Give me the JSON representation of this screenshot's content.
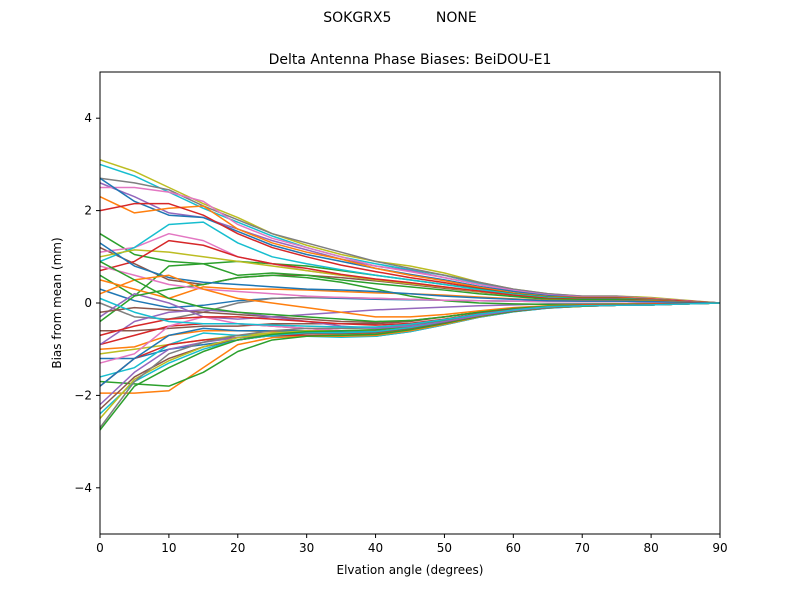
{
  "figure": {
    "suptitle": "SOKGRX5          NONE"
  },
  "chart_data": {
    "type": "line",
    "title": "Delta Antenna Phase Biases: BeiDOU-E1",
    "xlabel": "Elvation angle (degrees)",
    "ylabel": "Bias from mean (mm)",
    "xlim": [
      0,
      90
    ],
    "ylim": [
      -5,
      5
    ],
    "xticks": [
      0,
      10,
      20,
      30,
      40,
      50,
      60,
      70,
      80,
      90
    ],
    "yticks": [
      -4,
      -2,
      0,
      2,
      4
    ],
    "ytick_labels": [
      "−4",
      "−2",
      "0",
      "2",
      "4"
    ],
    "grid": false,
    "legend": "none",
    "x": [
      0,
      5,
      10,
      15,
      20,
      25,
      30,
      35,
      40,
      45,
      50,
      55,
      60,
      65,
      70,
      75,
      80,
      85,
      90
    ],
    "series": [
      {
        "color": "#bcbd22",
        "values": [
          3.1,
          2.85,
          2.5,
          2.15,
          1.85,
          1.5,
          1.25,
          1.05,
          0.9,
          0.8,
          0.65,
          0.45,
          0.3,
          0.2,
          0.15,
          0.15,
          0.12,
          0.06,
          0
        ]
      },
      {
        "color": "#17becf",
        "values": [
          3.0,
          2.75,
          2.4,
          2.05,
          1.75,
          1.45,
          1.2,
          1.0,
          0.85,
          0.72,
          0.6,
          0.42,
          0.28,
          0.18,
          0.14,
          0.14,
          0.1,
          0.05,
          0
        ]
      },
      {
        "color": "#7f7f7f",
        "values": [
          2.7,
          2.6,
          2.45,
          2.1,
          1.8,
          1.5,
          1.3,
          1.1,
          0.9,
          0.75,
          0.6,
          0.45,
          0.3,
          0.2,
          0.15,
          0.15,
          0.1,
          0.05,
          0
        ]
      },
      {
        "color": "#9467bd",
        "values": [
          2.6,
          2.3,
          1.95,
          1.85,
          1.6,
          1.35,
          1.15,
          0.95,
          0.8,
          0.7,
          0.55,
          0.4,
          0.28,
          0.18,
          0.14,
          0.13,
          0.1,
          0.05,
          0
        ]
      },
      {
        "color": "#e377c2",
        "values": [
          2.5,
          2.5,
          2.4,
          2.2,
          1.7,
          1.4,
          1.2,
          1.0,
          0.8,
          0.68,
          0.55,
          0.4,
          0.27,
          0.17,
          0.13,
          0.13,
          0.1,
          0.05,
          0
        ]
      },
      {
        "color": "#1f77b4",
        "values": [
          2.7,
          2.2,
          1.9,
          1.85,
          1.55,
          1.25,
          1.05,
          0.9,
          0.75,
          0.62,
          0.5,
          0.36,
          0.25,
          0.16,
          0.12,
          0.12,
          0.09,
          0.04,
          0
        ]
      },
      {
        "color": "#ff7f0e",
        "values": [
          2.3,
          1.95,
          2.05,
          2.1,
          1.6,
          1.3,
          1.1,
          0.95,
          0.75,
          0.6,
          0.48,
          0.34,
          0.22,
          0.14,
          0.12,
          0.12,
          0.09,
          0.04,
          0
        ]
      },
      {
        "color": "#d62728",
        "values": [
          2.0,
          2.15,
          2.15,
          1.9,
          1.5,
          1.2,
          1.0,
          0.82,
          0.68,
          0.55,
          0.44,
          0.32,
          0.2,
          0.13,
          0.11,
          0.11,
          0.08,
          0.04,
          0
        ]
      },
      {
        "color": "#2ca02c",
        "values": [
          1.5,
          1.05,
          0.9,
          0.85,
          0.9,
          0.85,
          0.8,
          0.7,
          0.6,
          0.5,
          0.4,
          0.3,
          0.2,
          0.13,
          0.1,
          0.1,
          0.07,
          0.03,
          0
        ]
      },
      {
        "color": "#8c564b",
        "values": [
          1.2,
          0.85,
          0.5,
          0.4,
          0.55,
          0.6,
          0.6,
          0.55,
          0.48,
          0.4,
          0.32,
          0.24,
          0.16,
          0.1,
          0.08,
          0.08,
          0.06,
          0.03,
          0
        ]
      },
      {
        "color": "#e377c2",
        "values": [
          1.1,
          1.2,
          1.5,
          1.35,
          1.0,
          0.85,
          0.7,
          0.6,
          0.5,
          0.42,
          0.34,
          0.25,
          0.17,
          0.1,
          0.08,
          0.08,
          0.06,
          0.03,
          0
        ]
      },
      {
        "color": "#17becf",
        "values": [
          0.9,
          1.2,
          1.7,
          1.75,
          1.3,
          1.0,
          0.85,
          0.72,
          0.6,
          0.5,
          0.4,
          0.29,
          0.19,
          0.12,
          0.09,
          0.09,
          0.07,
          0.03,
          0
        ]
      },
      {
        "color": "#bcbd22",
        "values": [
          1.0,
          1.15,
          1.1,
          1.0,
          0.9,
          0.8,
          0.7,
          0.6,
          0.5,
          0.42,
          0.34,
          0.25,
          0.17,
          0.1,
          0.08,
          0.08,
          0.06,
          0.03,
          0
        ]
      },
      {
        "color": "#d62728",
        "values": [
          0.7,
          0.9,
          1.35,
          1.25,
          1.0,
          0.85,
          0.75,
          0.62,
          0.52,
          0.44,
          0.35,
          0.26,
          0.17,
          0.1,
          0.08,
          0.08,
          0.06,
          0.03,
          0
        ]
      },
      {
        "color": "#2ca02c",
        "values": [
          0.6,
          0.15,
          0.8,
          0.85,
          0.6,
          0.65,
          0.6,
          0.5,
          0.42,
          0.35,
          0.28,
          0.2,
          0.14,
          0.08,
          0.07,
          0.07,
          0.05,
          0.02,
          0
        ]
      },
      {
        "color": "#ff7f0e",
        "values": [
          0.5,
          0.3,
          0.1,
          0.35,
          0.3,
          0.3,
          0.28,
          0.25,
          0.22,
          0.2,
          0.17,
          0.13,
          0.09,
          0.06,
          0.05,
          0.05,
          0.04,
          0.02,
          0
        ]
      },
      {
        "color": "#1f77b4",
        "values": [
          0.3,
          0.05,
          -0.1,
          -0.05,
          0.05,
          0.1,
          0.12,
          0.1,
          0.08,
          0.07,
          0.06,
          0.05,
          0.04,
          0.03,
          0.03,
          0.03,
          0.02,
          0.01,
          0
        ]
      },
      {
        "color": "#7f7f7f",
        "values": [
          0.0,
          -0.3,
          -0.35,
          -0.2,
          0.0,
          0.1,
          0.12,
          0.12,
          0.1,
          0.08,
          0.06,
          0.05,
          0.04,
          0.03,
          0.03,
          0.03,
          0.02,
          0.01,
          0
        ]
      },
      {
        "color": "#9467bd",
        "values": [
          -0.3,
          0.2,
          0.0,
          -0.3,
          -0.35,
          -0.3,
          -0.25,
          -0.2,
          -0.15,
          -0.12,
          -0.09,
          -0.06,
          -0.04,
          -0.02,
          -0.02,
          -0.02,
          -0.01,
          0,
          0
        ]
      },
      {
        "color": "#2ca02c",
        "values": [
          -0.4,
          0.15,
          0.3,
          0.4,
          0.55,
          0.6,
          0.55,
          0.45,
          0.3,
          0.15,
          0.05,
          0.0,
          -0.02,
          -0.03,
          -0.03,
          -0.02,
          -0.02,
          -0.01,
          0
        ]
      },
      {
        "color": "#8c564b",
        "values": [
          -0.6,
          -0.6,
          -0.55,
          -0.5,
          -0.5,
          -0.45,
          -0.45,
          -0.45,
          -0.45,
          -0.4,
          -0.3,
          -0.2,
          -0.12,
          -0.07,
          -0.05,
          -0.04,
          -0.03,
          -0.01,
          0
        ]
      },
      {
        "color": "#d62728",
        "values": [
          -0.9,
          -0.7,
          -0.5,
          -0.45,
          -0.45,
          -0.5,
          -0.55,
          -0.6,
          -0.6,
          -0.5,
          -0.38,
          -0.25,
          -0.15,
          -0.09,
          -0.06,
          -0.05,
          -0.04,
          -0.02,
          0
        ]
      },
      {
        "color": "#ff7f0e",
        "values": [
          -1.0,
          -0.95,
          -0.7,
          -0.6,
          -0.6,
          -0.62,
          -0.65,
          -0.68,
          -0.65,
          -0.55,
          -0.42,
          -0.28,
          -0.17,
          -0.1,
          -0.07,
          -0.05,
          -0.04,
          -0.02,
          0
        ]
      },
      {
        "color": "#bcbd22",
        "values": [
          -1.1,
          -1.0,
          -0.9,
          -0.8,
          -0.7,
          -0.65,
          -0.65,
          -0.68,
          -0.7,
          -0.6,
          -0.45,
          -0.3,
          -0.18,
          -0.1,
          -0.07,
          -0.05,
          -0.04,
          -0.02,
          0
        ]
      },
      {
        "color": "#1f77b4",
        "values": [
          -1.2,
          -1.2,
          -1.0,
          -0.9,
          -0.8,
          -0.7,
          -0.7,
          -0.72,
          -0.72,
          -0.62,
          -0.47,
          -0.31,
          -0.19,
          -0.11,
          -0.07,
          -0.05,
          -0.04,
          -0.02,
          0
        ]
      },
      {
        "color": "#e377c2",
        "values": [
          -1.3,
          -1.1,
          -0.5,
          -0.3,
          -0.45,
          -0.5,
          -0.55,
          -0.6,
          -0.62,
          -0.55,
          -0.42,
          -0.28,
          -0.17,
          -0.1,
          -0.07,
          -0.05,
          -0.04,
          -0.02,
          0
        ]
      },
      {
        "color": "#17becf",
        "values": [
          -1.6,
          -1.4,
          -0.9,
          -0.65,
          -0.7,
          -0.72,
          -0.72,
          -0.74,
          -0.72,
          -0.62,
          -0.47,
          -0.31,
          -0.19,
          -0.11,
          -0.07,
          -0.05,
          -0.04,
          -0.02,
          0
        ]
      },
      {
        "color": "#d62728",
        "values": [
          -1.8,
          -1.2,
          -0.9,
          -0.8,
          -0.75,
          -0.7,
          -0.7,
          -0.7,
          -0.68,
          -0.58,
          -0.44,
          -0.29,
          -0.18,
          -0.1,
          -0.07,
          -0.05,
          -0.04,
          -0.02,
          0
        ]
      },
      {
        "color": "#ff7f0e",
        "values": [
          -1.95,
          -1.95,
          -1.9,
          -1.4,
          -0.9,
          -0.75,
          -0.72,
          -0.72,
          -0.7,
          -0.6,
          -0.46,
          -0.3,
          -0.18,
          -0.1,
          -0.07,
          -0.05,
          -0.04,
          -0.02,
          0
        ]
      },
      {
        "color": "#2ca02c",
        "values": [
          -1.7,
          -1.75,
          -1.8,
          -1.5,
          -1.05,
          -0.8,
          -0.72,
          -0.7,
          -0.68,
          -0.58,
          -0.44,
          -0.29,
          -0.18,
          -0.1,
          -0.07,
          -0.05,
          -0.04,
          -0.02,
          0
        ]
      },
      {
        "color": "#1f77b4",
        "values": [
          -1.8,
          -1.2,
          -0.7,
          -0.55,
          -0.6,
          -0.6,
          -0.6,
          -0.62,
          -0.62,
          -0.53,
          -0.4,
          -0.26,
          -0.16,
          -0.09,
          -0.06,
          -0.05,
          -0.04,
          -0.02,
          0
        ]
      },
      {
        "color": "#9467bd",
        "values": [
          -2.2,
          -1.5,
          -1.0,
          -0.85,
          -0.75,
          -0.68,
          -0.65,
          -0.65,
          -0.63,
          -0.54,
          -0.41,
          -0.27,
          -0.16,
          -0.09,
          -0.06,
          -0.05,
          -0.04,
          -0.02,
          0
        ]
      },
      {
        "color": "#8c564b",
        "values": [
          -2.3,
          -1.6,
          -1.2,
          -0.95,
          -0.8,
          -0.7,
          -0.66,
          -0.66,
          -0.64,
          -0.55,
          -0.42,
          -0.27,
          -0.17,
          -0.1,
          -0.06,
          -0.05,
          -0.04,
          -0.02,
          0
        ]
      },
      {
        "color": "#17becf",
        "values": [
          -2.4,
          -1.7,
          -1.3,
          -1.0,
          -0.8,
          -0.7,
          -0.64,
          -0.64,
          -0.62,
          -0.53,
          -0.4,
          -0.26,
          -0.16,
          -0.09,
          -0.06,
          -0.05,
          -0.04,
          -0.02,
          0
        ]
      },
      {
        "color": "#bcbd22",
        "values": [
          -2.5,
          -1.65,
          -1.25,
          -0.95,
          -0.75,
          -0.65,
          -0.6,
          -0.6,
          -0.58,
          -0.5,
          -0.38,
          -0.25,
          -0.15,
          -0.09,
          -0.06,
          -0.05,
          -0.04,
          -0.02,
          0
        ]
      },
      {
        "color": "#7f7f7f",
        "values": [
          -2.7,
          -1.7,
          -1.1,
          -0.85,
          -0.7,
          -0.6,
          -0.55,
          -0.55,
          -0.54,
          -0.47,
          -0.36,
          -0.24,
          -0.14,
          -0.08,
          -0.06,
          -0.05,
          -0.04,
          -0.02,
          0
        ]
      },
      {
        "color": "#2ca02c",
        "values": [
          -2.75,
          -1.8,
          -1.4,
          -1.05,
          -0.8,
          -0.68,
          -0.62,
          -0.6,
          -0.58,
          -0.5,
          -0.38,
          -0.25,
          -0.15,
          -0.09,
          -0.06,
          -0.05,
          -0.04,
          -0.02,
          0
        ]
      },
      {
        "color": "#e377c2",
        "values": [
          0.8,
          0.6,
          0.4,
          0.3,
          0.25,
          0.2,
          0.15,
          0.12,
          0.1,
          0.08,
          0.06,
          0.05,
          0.04,
          0.03,
          0.03,
          0.03,
          0.02,
          0.01,
          0
        ]
      },
      {
        "color": "#1f77b4",
        "values": [
          1.3,
          0.8,
          0.55,
          0.45,
          0.4,
          0.35,
          0.3,
          0.28,
          0.25,
          0.2,
          0.15,
          0.11,
          0.08,
          0.05,
          0.04,
          0.04,
          0.03,
          0.01,
          0
        ]
      },
      {
        "color": "#8c564b",
        "values": [
          -0.2,
          -0.1,
          -0.15,
          -0.2,
          -0.25,
          -0.3,
          -0.35,
          -0.4,
          -0.42,
          -0.38,
          -0.3,
          -0.2,
          -0.12,
          -0.07,
          -0.05,
          -0.04,
          -0.03,
          -0.01,
          0
        ]
      },
      {
        "color": "#ff7f0e",
        "values": [
          0.2,
          0.5,
          0.6,
          0.3,
          0.1,
          0.0,
          -0.1,
          -0.2,
          -0.3,
          -0.3,
          -0.25,
          -0.17,
          -0.1,
          -0.06,
          -0.04,
          -0.03,
          -0.02,
          -0.01,
          0
        ]
      },
      {
        "color": "#9467bd",
        "values": [
          -0.9,
          -0.4,
          -0.2,
          -0.15,
          -0.2,
          -0.3,
          -0.4,
          -0.5,
          -0.55,
          -0.5,
          -0.4,
          -0.27,
          -0.16,
          -0.09,
          -0.06,
          -0.05,
          -0.04,
          -0.02,
          0
        ]
      },
      {
        "color": "#2ca02c",
        "values": [
          0.9,
          0.5,
          0.1,
          -0.1,
          -0.2,
          -0.25,
          -0.3,
          -0.35,
          -0.4,
          -0.38,
          -0.3,
          -0.2,
          -0.12,
          -0.07,
          -0.05,
          -0.04,
          -0.03,
          -0.01,
          0
        ]
      },
      {
        "color": "#d62728",
        "values": [
          -0.7,
          -0.5,
          -0.35,
          -0.3,
          -0.3,
          -0.35,
          -0.4,
          -0.45,
          -0.48,
          -0.44,
          -0.35,
          -0.23,
          -0.14,
          -0.08,
          -0.05,
          -0.04,
          -0.03,
          -0.01,
          0
        ]
      },
      {
        "color": "#17becf",
        "values": [
          0.1,
          -0.2,
          -0.4,
          -0.45,
          -0.45,
          -0.48,
          -0.5,
          -0.52,
          -0.52,
          -0.46,
          -0.36,
          -0.24,
          -0.15,
          -0.08,
          -0.06,
          -0.05,
          -0.04,
          -0.02,
          0
        ]
      }
    ]
  }
}
